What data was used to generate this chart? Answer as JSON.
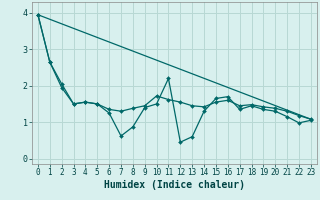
{
  "title": "",
  "xlabel": "Humidex (Indice chaleur)",
  "ylabel": "",
  "background_color": "#d8f0ee",
  "grid_color": "#b8d8d4",
  "line_color": "#006868",
  "ylim": [
    -0.15,
    4.3
  ],
  "xlim": [
    -0.5,
    23.5
  ],
  "yticks": [
    0,
    1,
    2,
    3,
    4
  ],
  "xticks": [
    0,
    1,
    2,
    3,
    4,
    5,
    6,
    7,
    8,
    9,
    10,
    11,
    12,
    13,
    14,
    15,
    16,
    17,
    18,
    19,
    20,
    21,
    22,
    23
  ],
  "line1_x": [
    0,
    1,
    2,
    3,
    4,
    5,
    6,
    7,
    8,
    9,
    10,
    11,
    12,
    13,
    14,
    15,
    16,
    17,
    18,
    19,
    20,
    21,
    22,
    23
  ],
  "line1_y": [
    3.95,
    2.65,
    2.05,
    1.5,
    1.55,
    1.5,
    1.25,
    0.62,
    0.87,
    1.4,
    1.5,
    2.2,
    0.45,
    0.6,
    1.3,
    1.65,
    1.7,
    1.35,
    1.45,
    1.35,
    1.3,
    1.15,
    0.98,
    1.05
  ],
  "line2_x": [
    0,
    1,
    2,
    3,
    4,
    5,
    6,
    7,
    8,
    9,
    10,
    11,
    12,
    13,
    14,
    15,
    16,
    17,
    18,
    19,
    20,
    21,
    22,
    23
  ],
  "line2_y": [
    3.95,
    2.65,
    1.95,
    1.5,
    1.55,
    1.5,
    1.35,
    1.3,
    1.38,
    1.45,
    1.72,
    1.62,
    1.55,
    1.45,
    1.42,
    1.55,
    1.6,
    1.45,
    1.48,
    1.42,
    1.38,
    1.3,
    1.18,
    1.08
  ],
  "line3_x": [
    0,
    23
  ],
  "line3_y": [
    3.95,
    1.08
  ],
  "tick_fontsize": 5.5,
  "xlabel_fontsize": 7.0
}
